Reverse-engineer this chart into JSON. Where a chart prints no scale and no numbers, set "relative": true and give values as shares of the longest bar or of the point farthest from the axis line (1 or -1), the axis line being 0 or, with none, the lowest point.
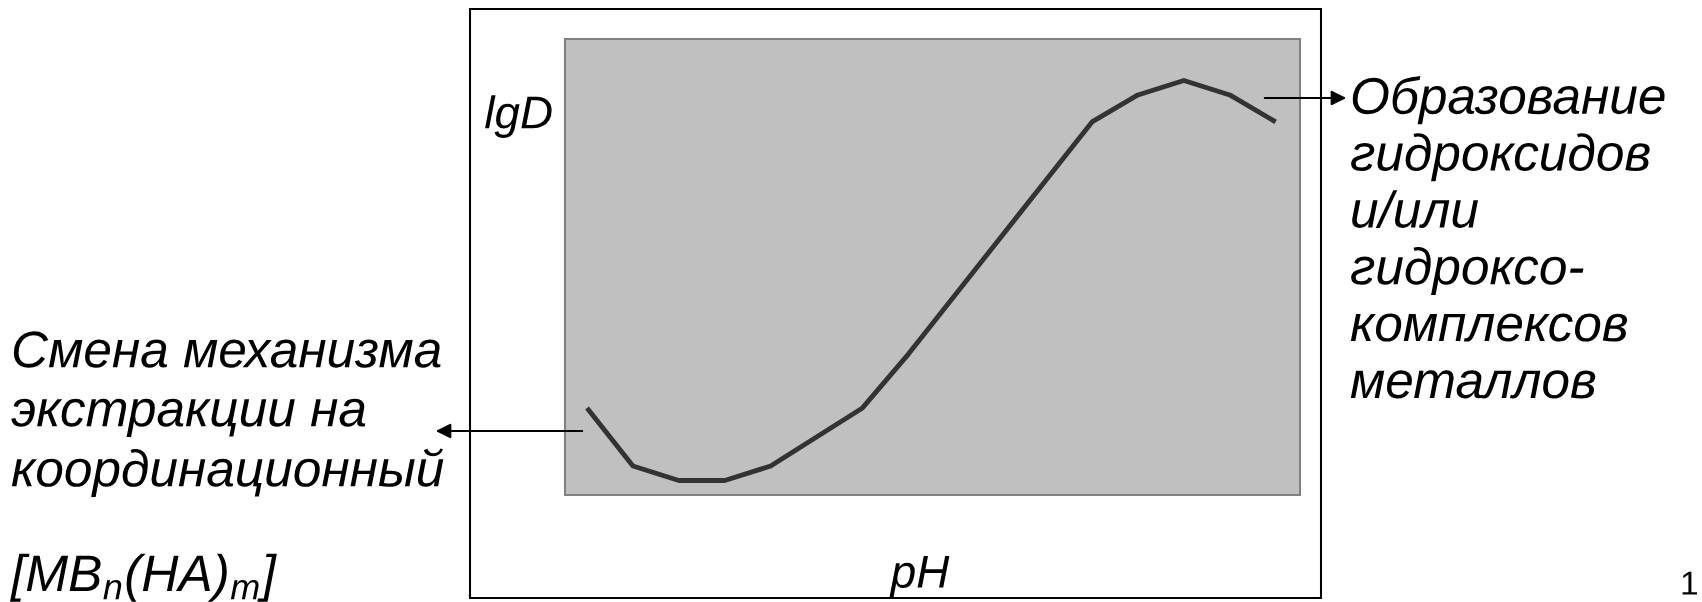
{
  "chart_data": {
    "type": "line",
    "relative": true,
    "xlabel": "pH",
    "ylabel": "lgD",
    "categories": [
      null,
      null,
      null,
      null,
      null,
      null,
      null,
      null,
      null,
      null,
      null,
      null,
      null,
      null,
      null,
      null
    ],
    "color": "#333333",
    "values": [
      0.21,
      0.07,
      0.035,
      0.035,
      0.07,
      0.14,
      0.21,
      0.34,
      0.48,
      0.62,
      0.76,
      0.9,
      0.965,
      1,
      0.965,
      0.9
    ],
    "annotations": [
      "Смена механизма\nэкстракции на\nкоординационный",
      "[MB$_{n}$(HA)$_{m}$]",
      "Образование\nгидроксидов\nи/или\nгидроксо-\nкомплексов\nметаллов",
      "1"
    ]
  }
}
